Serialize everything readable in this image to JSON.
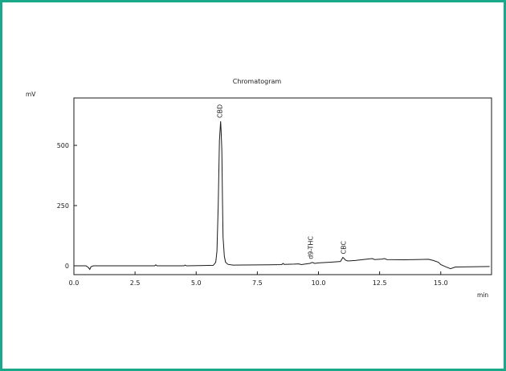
{
  "chart_data": {
    "type": "line",
    "title": "Chromatogram",
    "ylabel": "mV",
    "xlabel": "min",
    "xlim": [
      0,
      17
    ],
    "ylim": [
      -25,
      690
    ],
    "xticks": [
      "0.0",
      "2.5",
      "5.0",
      "7.5",
      "10.0",
      "12.5",
      "15.0"
    ],
    "xtick_values": [
      0,
      2.5,
      5.0,
      7.5,
      10.0,
      12.5,
      15.0
    ],
    "yticks": [
      "0",
      "250",
      "500"
    ],
    "ytick_values": [
      0,
      250,
      500
    ],
    "grid": false,
    "series": [
      {
        "x": [
          0,
          0.5,
          0.6,
          0.65,
          0.7,
          0.8,
          1.0,
          3.3,
          3.35,
          3.4,
          4.5,
          4.55,
          4.6,
          5.7,
          5.8,
          5.85,
          5.9,
          5.95,
          6.0,
          6.02,
          6.05,
          6.08,
          6.1,
          6.15,
          6.2,
          6.3,
          6.5,
          8.0,
          8.5,
          8.55,
          8.6,
          9.0,
          9.2,
          9.3,
          9.5,
          9.65,
          9.75,
          9.85,
          10.0,
          10.5,
          10.9,
          11.0,
          11.05,
          11.1,
          11.2,
          11.5,
          12.0,
          12.2,
          12.3,
          12.6,
          12.7,
          12.8,
          13.5,
          14.0,
          14.5,
          14.7,
          14.9,
          15.0,
          15.2,
          15.4,
          15.6,
          17.0
        ],
        "y": [
          0,
          0,
          -8,
          -15,
          -4,
          0,
          0,
          0,
          4,
          0,
          0,
          3,
          0,
          2,
          15,
          60,
          250,
          520,
          600,
          560,
          480,
          250,
          120,
          40,
          15,
          6,
          3,
          4,
          5,
          10,
          6,
          7,
          8,
          5,
          8,
          10,
          14,
          10,
          12,
          15,
          18,
          35,
          30,
          24,
          20,
          22,
          28,
          30,
          26,
          28,
          30,
          26,
          25,
          26,
          27,
          22,
          15,
          5,
          -4,
          -12,
          -5,
          -3
        ]
      }
    ],
    "annotations": [
      {
        "label": "CBD",
        "x": 6.0,
        "y": 600
      },
      {
        "label": "d9-THC",
        "x": 9.7,
        "y": 14
      },
      {
        "label": "CBC",
        "x": 11.05,
        "y": 35
      }
    ]
  }
}
